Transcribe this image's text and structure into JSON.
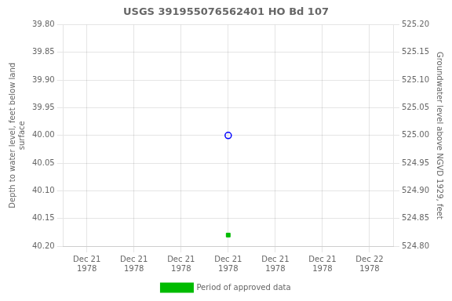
{
  "chart_data": {
    "type": "scatter",
    "title": "USGS 391955076562401 HO Bd 107",
    "ylabel": "Depth to water level, feet below land\nsurface",
    "y2label": "Groundwater level above NGVD 1929, feet",
    "categories": [
      "Dec 21\n1978",
      "Dec 21\n1978",
      "Dec 21\n1978",
      "Dec 21\n1978",
      "Dec 21\n1978",
      "Dec 21\n1978",
      "Dec 22\n1978"
    ],
    "series": [
      {
        "color": "blue",
        "marker": "circle",
        "values": [
          null,
          null,
          null,
          40.0,
          null,
          null,
          null
        ]
      },
      {
        "name": "Period of approved data",
        "color": "#00bb00",
        "marker": "square",
        "values": [
          null,
          null,
          null,
          40.18,
          null,
          null,
          null
        ]
      }
    ],
    "ylim": [
      40.2,
      39.8
    ],
    "yticks": [
      {
        "value": 39.8,
        "label": "39.80"
      },
      {
        "value": 39.85,
        "label": "39.85"
      },
      {
        "value": 39.9,
        "label": "39.90"
      },
      {
        "value": 39.95,
        "label": "39.95"
      },
      {
        "value": 40.0,
        "label": "40.00"
      },
      {
        "value": 40.05,
        "label": "40.05"
      },
      {
        "value": 40.1,
        "label": "40.10"
      },
      {
        "value": 40.15,
        "label": "40.15"
      },
      {
        "value": 40.2,
        "label": "40.20"
      }
    ],
    "y2lim": [
      524.8,
      525.2
    ],
    "y2ticks": [
      {
        "value": 525.2,
        "label": "525.20"
      },
      {
        "value": 525.15,
        "label": "525.15"
      },
      {
        "value": 525.1,
        "label": "525.10"
      },
      {
        "value": 525.05,
        "label": "525.05"
      },
      {
        "value": 525.0,
        "label": "525.00"
      },
      {
        "value": 524.95,
        "label": "524.95"
      },
      {
        "value": 524.9,
        "label": "524.90"
      },
      {
        "value": 524.85,
        "label": "524.85"
      },
      {
        "value": 524.8,
        "label": "524.80"
      }
    ],
    "grid": true,
    "legend": "bottom"
  }
}
